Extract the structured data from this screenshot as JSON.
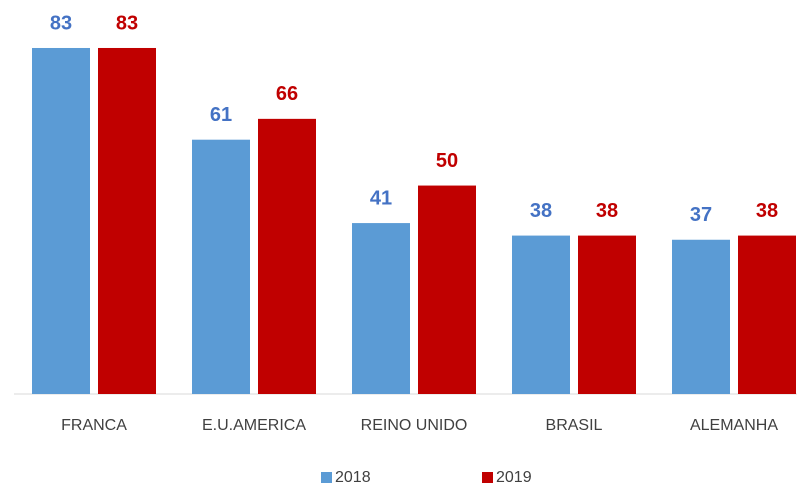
{
  "chart_data": {
    "type": "bar",
    "categories": [
      "FRANCA",
      "E.U.AMERICA",
      "REINO UNIDO",
      "BRASIL",
      "ALEMANHA"
    ],
    "series": [
      {
        "name": "2018",
        "color": "#5b9bd5",
        "label_color": "#4472c4",
        "values": [
          83,
          61,
          41,
          38,
          37
        ]
      },
      {
        "name": "2019",
        "color": "#c00000",
        "label_color": "#c00000",
        "values": [
          83,
          66,
          50,
          38,
          38
        ]
      }
    ],
    "ylim": [
      0,
      90
    ],
    "legend": "bottom"
  }
}
